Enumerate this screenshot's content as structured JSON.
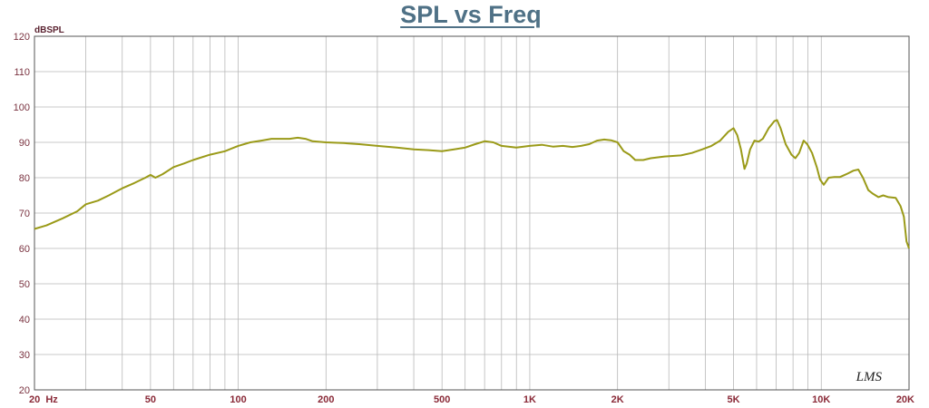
{
  "chart_data": {
    "type": "line",
    "title": "SPL vs Freq",
    "ylabel": "dBSPL",
    "xlabel": "",
    "x_scale": "log",
    "xlim": [
      20,
      20000
    ],
    "ylim": [
      20,
      120
    ],
    "grid": true,
    "y_ticks": [
      20,
      30,
      40,
      50,
      60,
      70,
      80,
      90,
      100,
      110,
      120
    ],
    "x_ticks": [
      {
        "value": 20,
        "label": "20  Hz"
      },
      {
        "value": 50,
        "label": "50"
      },
      {
        "value": 100,
        "label": "100"
      },
      {
        "value": 200,
        "label": "200"
      },
      {
        "value": 500,
        "label": "500"
      },
      {
        "value": 1000,
        "label": "1K"
      },
      {
        "value": 2000,
        "label": "2K"
      },
      {
        "value": 5000,
        "label": "5K"
      },
      {
        "value": 10000,
        "label": "10K"
      },
      {
        "value": 20000,
        "label": "20K"
      }
    ],
    "logo_text": "LMS",
    "series": [
      {
        "color": "#9a9a18",
        "points": [
          [
            20,
            65.5
          ],
          [
            22,
            66.5
          ],
          [
            25,
            68.5
          ],
          [
            28,
            70.5
          ],
          [
            30,
            72.5
          ],
          [
            33,
            73.5
          ],
          [
            36,
            75
          ],
          [
            40,
            77
          ],
          [
            44,
            78.5
          ],
          [
            48,
            80
          ],
          [
            50,
            80.8
          ],
          [
            52,
            80
          ],
          [
            55,
            81
          ],
          [
            60,
            83
          ],
          [
            65,
            84
          ],
          [
            70,
            85
          ],
          [
            80,
            86.5
          ],
          [
            90,
            87.5
          ],
          [
            100,
            89
          ],
          [
            110,
            90
          ],
          [
            120,
            90.5
          ],
          [
            130,
            91
          ],
          [
            150,
            91
          ],
          [
            160,
            91.3
          ],
          [
            170,
            91
          ],
          [
            180,
            90.3
          ],
          [
            200,
            90
          ],
          [
            230,
            89.8
          ],
          [
            260,
            89.5
          ],
          [
            300,
            89
          ],
          [
            350,
            88.5
          ],
          [
            400,
            88
          ],
          [
            450,
            87.8
          ],
          [
            500,
            87.5
          ],
          [
            550,
            88
          ],
          [
            600,
            88.5
          ],
          [
            650,
            89.5
          ],
          [
            700,
            90.3
          ],
          [
            750,
            90
          ],
          [
            800,
            89
          ],
          [
            900,
            88.5
          ],
          [
            1000,
            89
          ],
          [
            1100,
            89.3
          ],
          [
            1200,
            88.8
          ],
          [
            1300,
            89
          ],
          [
            1400,
            88.7
          ],
          [
            1500,
            89
          ],
          [
            1600,
            89.5
          ],
          [
            1700,
            90.5
          ],
          [
            1800,
            90.8
          ],
          [
            1900,
            90.6
          ],
          [
            2000,
            90
          ],
          [
            2100,
            87.5
          ],
          [
            2200,
            86.5
          ],
          [
            2300,
            85
          ],
          [
            2450,
            85
          ],
          [
            2600,
            85.5
          ],
          [
            2900,
            86
          ],
          [
            3300,
            86.3
          ],
          [
            3600,
            87
          ],
          [
            3900,
            88
          ],
          [
            4200,
            89
          ],
          [
            4500,
            90.5
          ],
          [
            4800,
            93
          ],
          [
            5000,
            94
          ],
          [
            5150,
            92
          ],
          [
            5300,
            88
          ],
          [
            5450,
            82.5
          ],
          [
            5550,
            84
          ],
          [
            5700,
            88
          ],
          [
            5900,
            90.5
          ],
          [
            6100,
            90.2
          ],
          [
            6300,
            91
          ],
          [
            6600,
            94
          ],
          [
            6900,
            96
          ],
          [
            7050,
            96.3
          ],
          [
            7250,
            94
          ],
          [
            7550,
            89.5
          ],
          [
            7900,
            86.5
          ],
          [
            8150,
            85.5
          ],
          [
            8400,
            87
          ],
          [
            8700,
            90.5
          ],
          [
            8950,
            89.5
          ],
          [
            9300,
            87
          ],
          [
            9650,
            83
          ],
          [
            9900,
            79.5
          ],
          [
            10200,
            78
          ],
          [
            10600,
            80
          ],
          [
            11100,
            80.2
          ],
          [
            11600,
            80.2
          ],
          [
            12200,
            81
          ],
          [
            12900,
            82
          ],
          [
            13400,
            82.3
          ],
          [
            13900,
            80
          ],
          [
            14500,
            76.5
          ],
          [
            15000,
            75.5
          ],
          [
            15700,
            74.5
          ],
          [
            16300,
            75
          ],
          [
            17000,
            74.5
          ],
          [
            18000,
            74.3
          ],
          [
            18700,
            72
          ],
          [
            19200,
            69
          ],
          [
            19600,
            62
          ],
          [
            20000,
            60
          ]
        ]
      }
    ]
  }
}
